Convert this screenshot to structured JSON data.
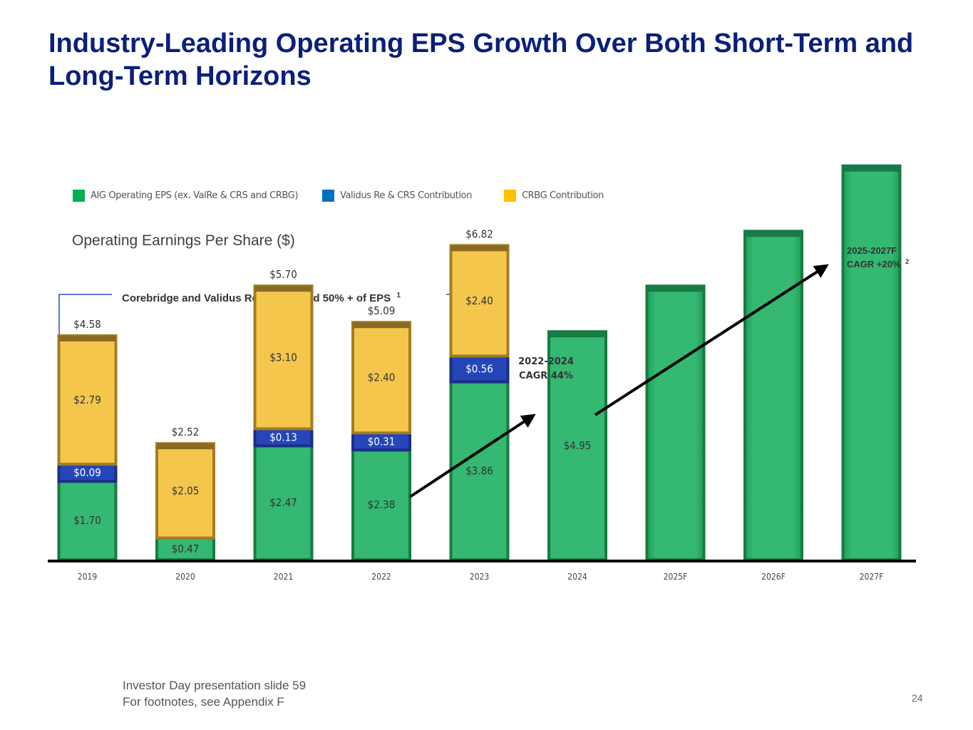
{
  "slide": {
    "title": "Industry-Leading Operating EPS Growth Over Both Short-Term and Long-Term Horizons",
    "footer_line1": "Investor Day presentation slide 59",
    "footer_line2": "For footnotes, see Appendix F",
    "page_number": "24"
  },
  "legend": [
    {
      "label": "AIG Operating EPS (ex. ValRe & CRS and CRBG)",
      "color": "#00b050"
    },
    {
      "label": "Validus Re & CRS Contribution",
      "color": "#0070c0"
    },
    {
      "label": "CRBG Contribution",
      "color": "#ffc000"
    }
  ],
  "annotations": {
    "bracket_note": "Corebridge and Validus Re contributed 50% + of EPS",
    "bracket_note_sup": "1",
    "cagr_short_line1": "2022-2024",
    "cagr_short_line2": "CAGR 44%",
    "cagr_long_line1": "2025-2027F",
    "cagr_long_line2": "CAGR +20%",
    "cagr_long_sup": "2"
  },
  "chart_data": {
    "type": "bar",
    "stacked": true,
    "title": "Operating Earnings Per Share ($)",
    "categories": [
      "2019",
      "2020",
      "2021",
      "2022",
      "2023",
      "2024",
      "2025F",
      "2026F",
      "2027F"
    ],
    "series": [
      {
        "name": "AIG Operating EPS (ex. ValRe & CRS and CRBG)",
        "color": "#00b050",
        "values": [
          1.7,
          0.47,
          2.47,
          2.38,
          3.86,
          4.95,
          null,
          null,
          null
        ],
        "labels": [
          "$1.70",
          "$0.47",
          "$2.47",
          "$2.38",
          "$3.86",
          "$4.95",
          "",
          "",
          ""
        ]
      },
      {
        "name": "Validus Re & CRS Contribution",
        "color": "#0070c0",
        "values": [
          0.09,
          0,
          0.13,
          0.31,
          0.56,
          0,
          0,
          0,
          0
        ],
        "labels": [
          "$0.09",
          "",
          "$0.13",
          "$0.31",
          "$0.56",
          "",
          "",
          "",
          ""
        ]
      },
      {
        "name": "CRBG Contribution",
        "color": "#ffc000",
        "values": [
          2.79,
          2.05,
          3.1,
          2.4,
          2.4,
          0,
          0,
          0,
          0
        ],
        "labels": [
          "$2.79",
          "$2.05",
          "$3.10",
          "$2.40",
          "$2.40",
          "",
          "",
          "",
          ""
        ]
      }
    ],
    "totals": [
      4.58,
      2.52,
      5.7,
      5.09,
      6.82,
      4.95,
      null,
      null,
      null
    ],
    "total_labels": [
      "$4.58",
      "$2.52",
      "$5.70",
      "$5.09",
      "$6.82",
      "",
      "",
      "",
      ""
    ],
    "forecast_bar_values": [
      null,
      null,
      null,
      null,
      null,
      null,
      5.94,
      7.13,
      8.55
    ],
    "ylim": [
      0,
      9.3
    ],
    "grid": false
  }
}
